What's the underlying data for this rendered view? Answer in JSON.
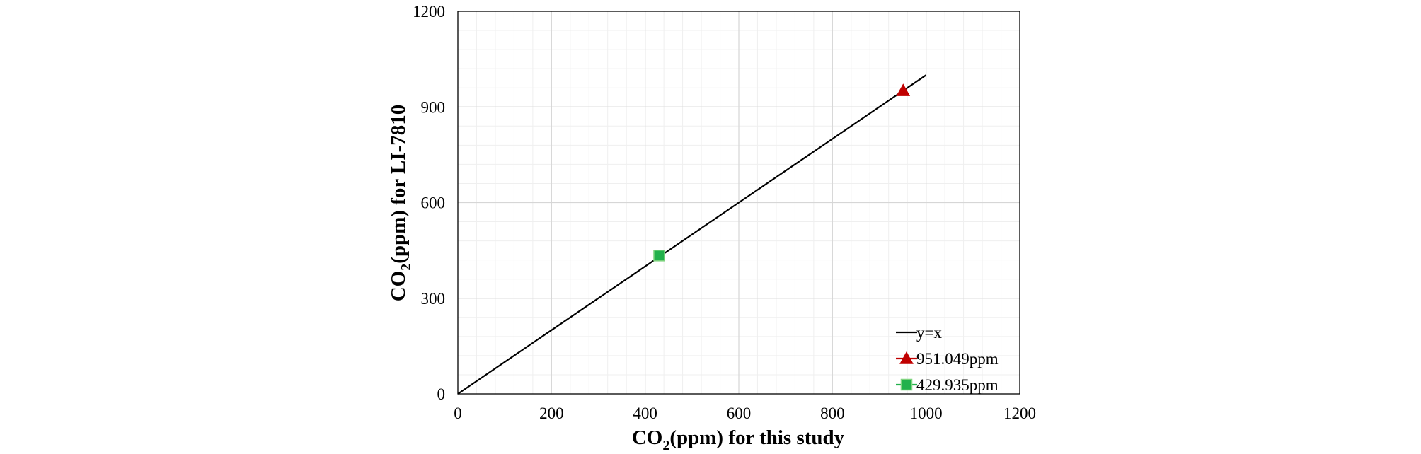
{
  "chart_data": {
    "type": "scatter",
    "title": "",
    "xlabel": {
      "prefix": "CO",
      "sub": "2",
      "suffix": "(ppm) for this study"
    },
    "ylabel": {
      "prefix": "CO",
      "sub": "2",
      "suffix": "(ppm) for LI-7810"
    },
    "xlim": [
      0,
      1200
    ],
    "ylim": [
      0,
      1200
    ],
    "xticks": [
      0,
      200,
      400,
      600,
      800,
      1000,
      1200
    ],
    "yticks": [
      0,
      300,
      600,
      900,
      1200
    ],
    "grid": true,
    "legend_position": "bottom-right",
    "series": [
      {
        "name": "y=x",
        "kind": "line",
        "color": "#000000",
        "x": [
          0,
          1000
        ],
        "y": [
          0,
          1000
        ]
      },
      {
        "name": "951.049ppm",
        "kind": "marker",
        "marker": "triangle",
        "color": "#c00000",
        "x": [
          951.049
        ],
        "y": [
          951.049
        ]
      },
      {
        "name": "429.935ppm",
        "kind": "marker",
        "marker": "square",
        "color": "#22b14c",
        "x": [
          429.935
        ],
        "y": [
          434
        ]
      }
    ]
  }
}
